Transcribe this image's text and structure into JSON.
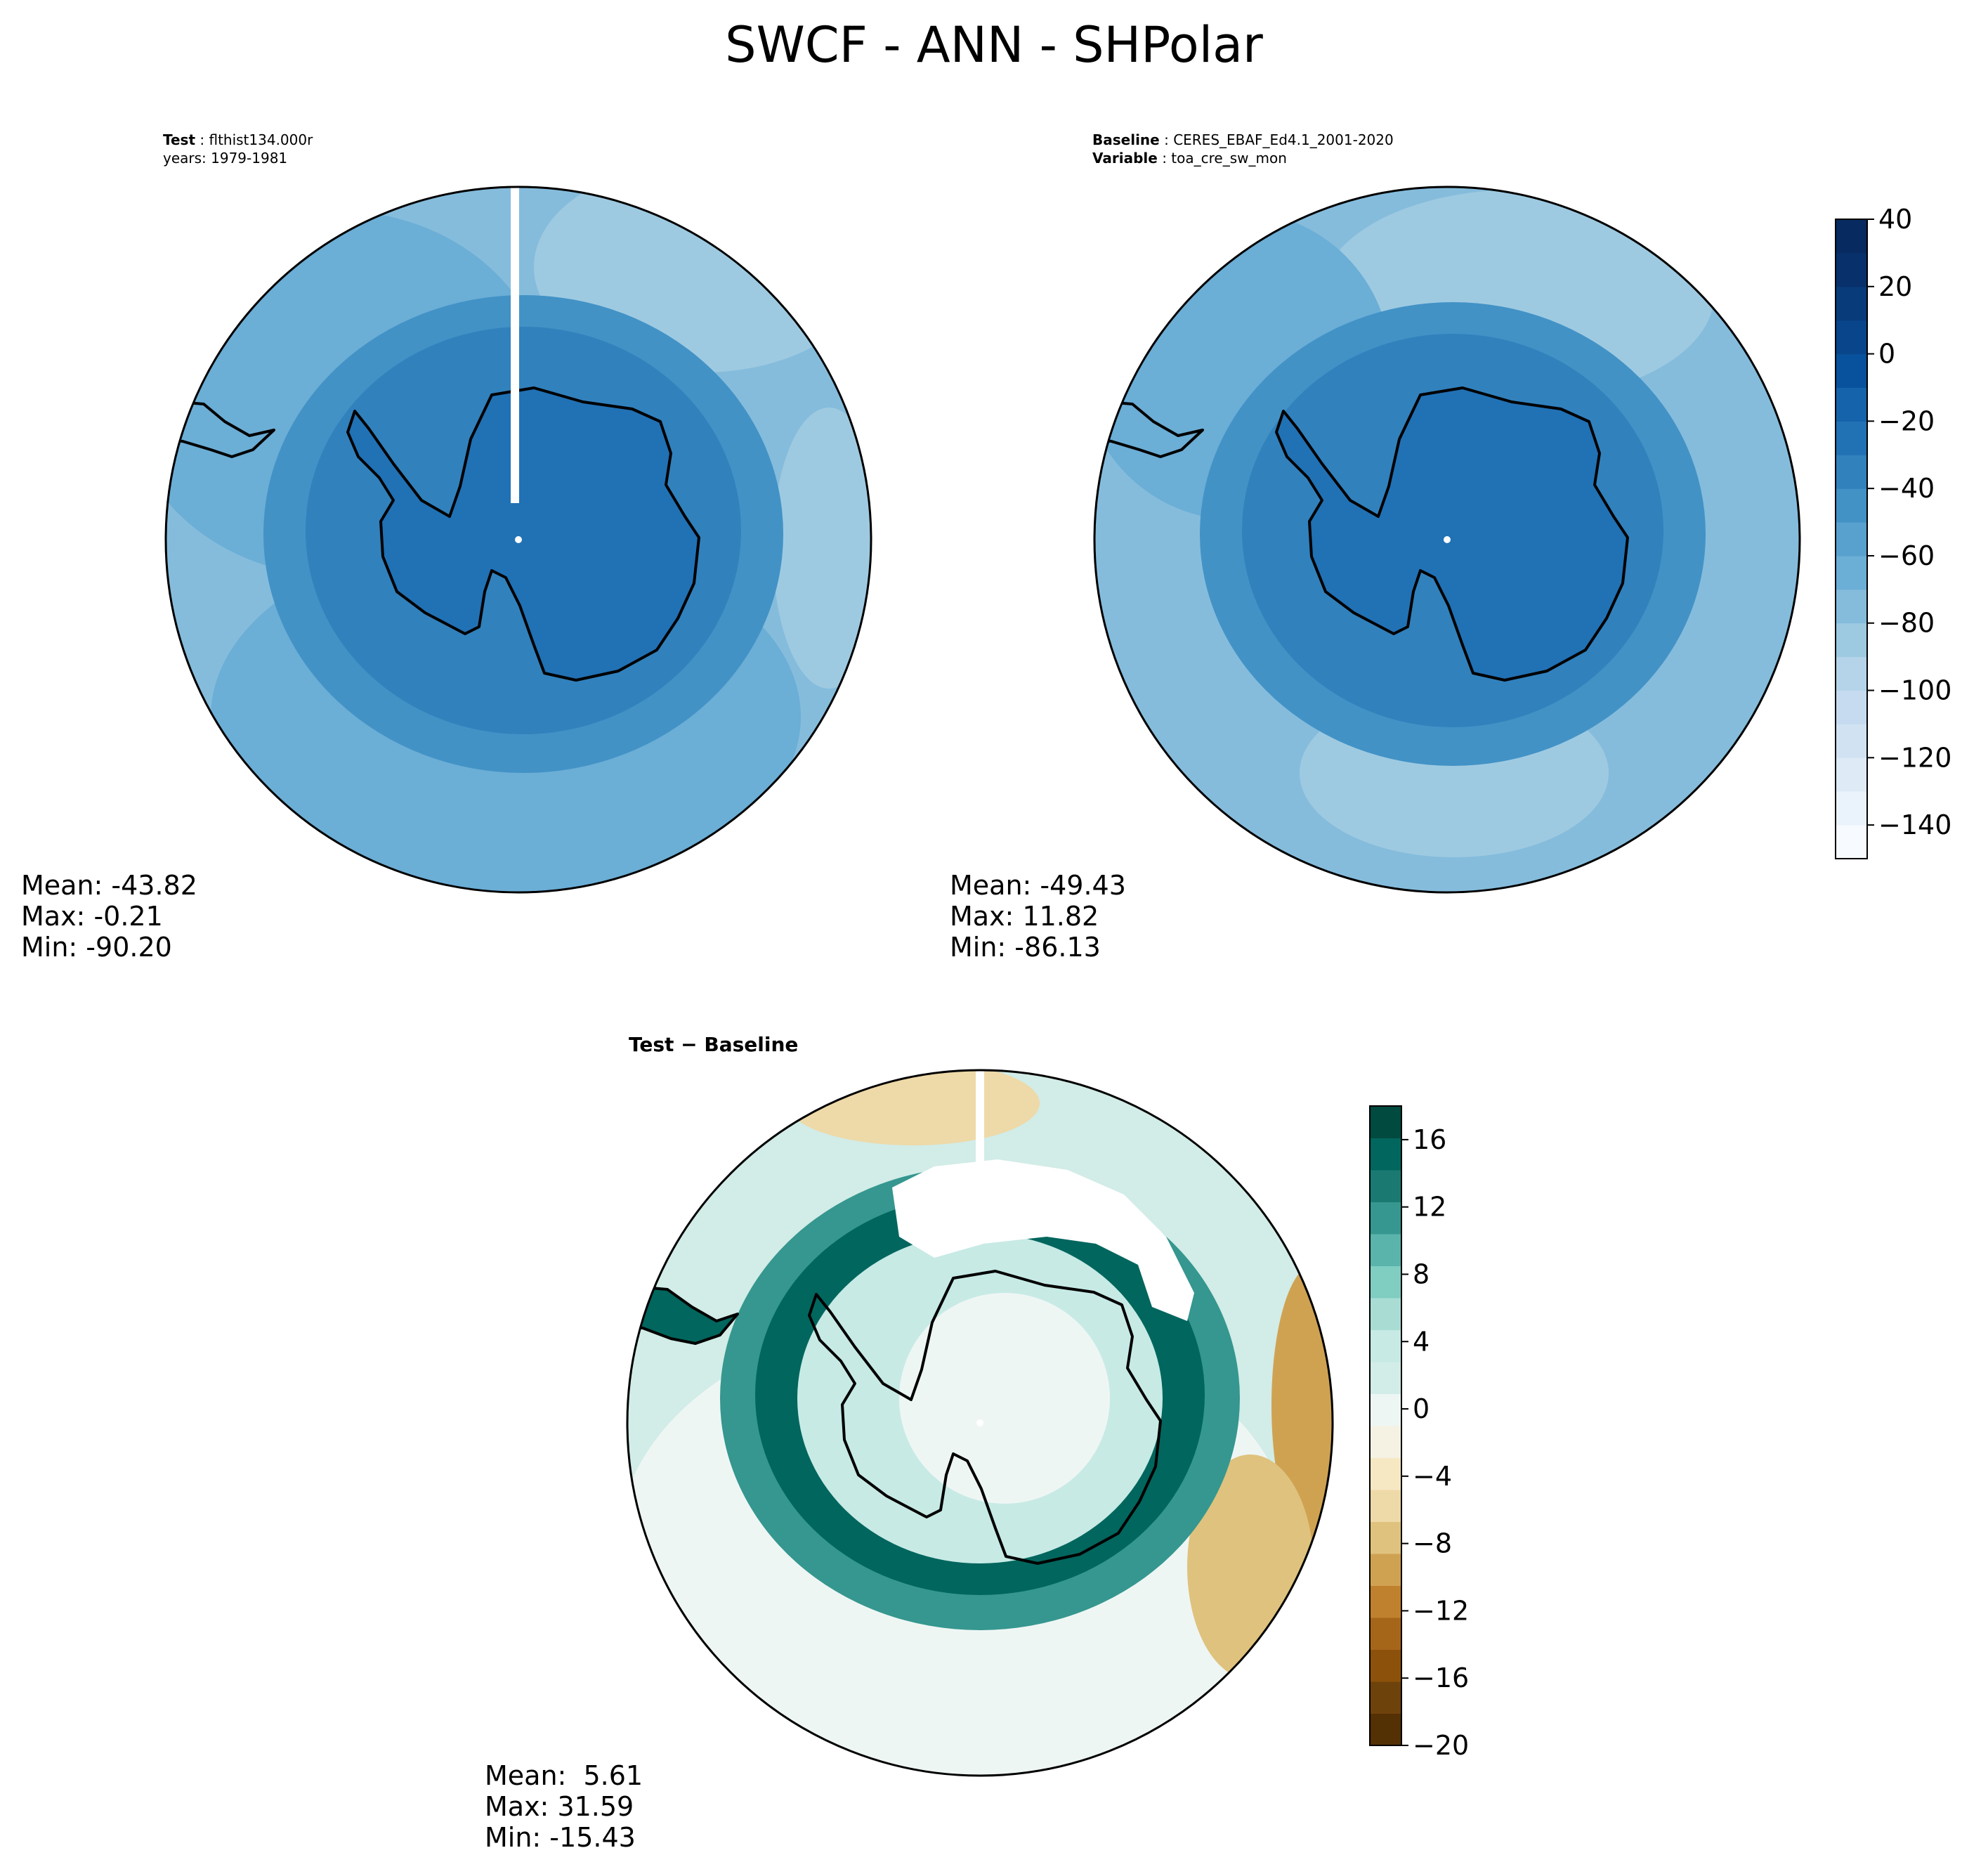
{
  "title": "SWCF - ANN - SHPolar",
  "panels": [
    {
      "label": "Test",
      "value": "flthist134.000r",
      "line2": "years: 1979-1981",
      "stats": {
        "mean": "Mean: -43.82",
        "max": "Max: -0.21",
        "min": "Min: -90.20"
      }
    },
    {
      "label": "Baseline",
      "value": "CERES_EBAF_Ed4.1_2001-2020",
      "label2": "Variable",
      "value2": "toa_cre_sw_mon",
      "stats": {
        "mean": "Mean: -49.43",
        "max": "Max: 11.82",
        "min": "Min: -86.13"
      }
    },
    {
      "label": "Test − Baseline",
      "stats": {
        "mean": "Mean:  5.61",
        "max": "Max: 31.59",
        "min": "Min: -15.43"
      }
    }
  ],
  "colorbars": {
    "main": {
      "min": -150,
      "max": 40,
      "ticks": [
        "40",
        "20",
        "0",
        "−20",
        "−40",
        "−60",
        "−80",
        "−100",
        "−120",
        "−140"
      ],
      "tick_values": [
        40,
        20,
        0,
        -20,
        -40,
        -60,
        -80,
        -100,
        -120,
        -140
      ],
      "colors": [
        "#f7fbff",
        "#eaf3fb",
        "#deebf7",
        "#d1e3f3",
        "#c6dbef",
        "#b5d4e9",
        "#9ecae1",
        "#85bcdc",
        "#6baed6",
        "#58a1cf",
        "#4292c6",
        "#3181bd",
        "#2171b5",
        "#1563aa",
        "#08519c",
        "#08458a",
        "#083b7a",
        "#08306b",
        "#072a60"
      ]
    },
    "diff": {
      "min": -20,
      "max": 18,
      "ticks": [
        "16",
        "12",
        "8",
        "4",
        "0",
        "−4",
        "−8",
        "−12",
        "−16",
        "−20"
      ],
      "tick_values": [
        16,
        12,
        8,
        4,
        0,
        -4,
        -8,
        -12,
        -16,
        -20
      ],
      "colors": [
        "#543005",
        "#6e420b",
        "#8c510a",
        "#a6661a",
        "#bf812d",
        "#cfa252",
        "#dfc27d",
        "#eed9a8",
        "#f6e8c3",
        "#f5f1e3",
        "#eef6f4",
        "#d2ece7",
        "#c7eae5",
        "#a9ddd4",
        "#80cdc1",
        "#5ab4ac",
        "#35978f",
        "#1a7a72",
        "#01665e",
        "#004a40"
      ]
    }
  },
  "map_colors": {
    "ocean_a": "#6baed6",
    "ocean_b": "#85bcdc",
    "ocean_c": "#9ecae1",
    "ring_a": "#4292c6",
    "ring_b": "#3181bd",
    "antarctica": "#2171b5",
    "coast": "#000000"
  }
}
